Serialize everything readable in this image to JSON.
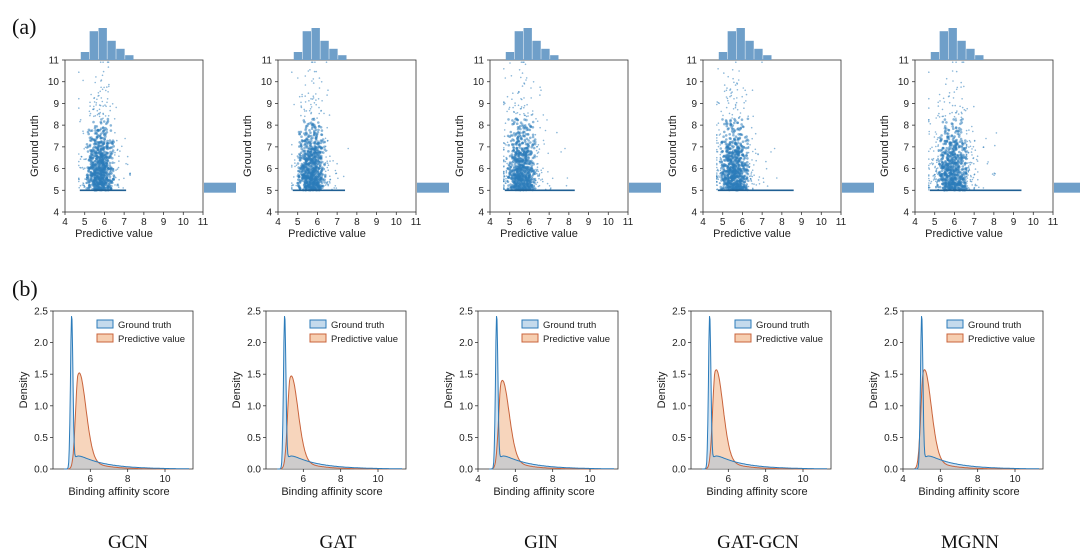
{
  "figure": {
    "panel_a": "(a)",
    "panel_b": "(b)",
    "models": [
      "GCN",
      "GAT",
      "GIN",
      "GAT-GCN",
      "MGNN"
    ]
  },
  "colors": {
    "truth": "#2b7bba",
    "truth_fill": "#9cc1e0",
    "pred": "#c9643c",
    "pred_fill": "#f2b98f",
    "axis": "#333333"
  },
  "chart_data": [
    {
      "type": "scatter",
      "panel": "(a)",
      "xlabel": "Predictive value",
      "ylabel": "Ground truth",
      "xlim": [
        4,
        11
      ],
      "ylim": [
        4,
        11
      ],
      "xticks": [
        "4",
        "5",
        "6",
        "7",
        "8",
        "9",
        "10",
        "11"
      ],
      "yticks": [
        "4",
        "5",
        "6",
        "7",
        "8",
        "9",
        "10",
        "11"
      ],
      "marginals": "top histogram of predictive value, right histogram of ground truth",
      "series": [
        {
          "name": "GCN",
          "pred_center": 5.8,
          "pred_spread": 0.55,
          "max_pred": 7.3,
          "truth_floor": 5.0
        },
        {
          "name": "GAT",
          "pred_center": 5.7,
          "pred_spread": 0.55,
          "max_pred": 7.6,
          "truth_floor": 5.0
        },
        {
          "name": "GIN",
          "pred_center": 5.6,
          "pred_spread": 0.65,
          "max_pred": 8.5,
          "truth_floor": 5.0
        },
        {
          "name": "GAT-GCN",
          "pred_center": 5.6,
          "pred_spread": 0.6,
          "max_pred": 8.8,
          "truth_floor": 5.0
        },
        {
          "name": "MGNN",
          "pred_center": 5.9,
          "pred_spread": 0.75,
          "max_pred": 9.6,
          "truth_floor": 5.0
        }
      ]
    },
    {
      "type": "area",
      "panel": "(b)",
      "xlabel": "Binding affinity score",
      "ylabel": "Density",
      "xlim": [
        4,
        11.5
      ],
      "ylim": [
        0,
        2.5
      ],
      "xticks": [
        "6",
        "8",
        "10"
      ],
      "xticks_variant": [
        "4",
        "6",
        "8",
        "10"
      ],
      "yticks": [
        "0.0",
        "0.5",
        "1.0",
        "1.5",
        "2.0",
        "2.5"
      ],
      "legend": [
        "Ground truth",
        "Predictive value"
      ],
      "series": [
        {
          "name": "GCN",
          "truth_peak": 2.45,
          "pred_peak": 1.5,
          "pred_mode": 5.35
        },
        {
          "name": "GAT",
          "truth_peak": 2.45,
          "pred_peak": 1.45,
          "pred_mode": 5.3
        },
        {
          "name": "GIN",
          "truth_peak": 2.45,
          "pred_peak": 1.38,
          "pred_mode": 5.25
        },
        {
          "name": "GAT-GCN",
          "truth_peak": 2.45,
          "pred_peak": 1.55,
          "pred_mode": 5.3
        },
        {
          "name": "MGNN",
          "truth_peak": 2.45,
          "pred_peak": 1.55,
          "pred_mode": 5.1
        }
      ]
    }
  ]
}
